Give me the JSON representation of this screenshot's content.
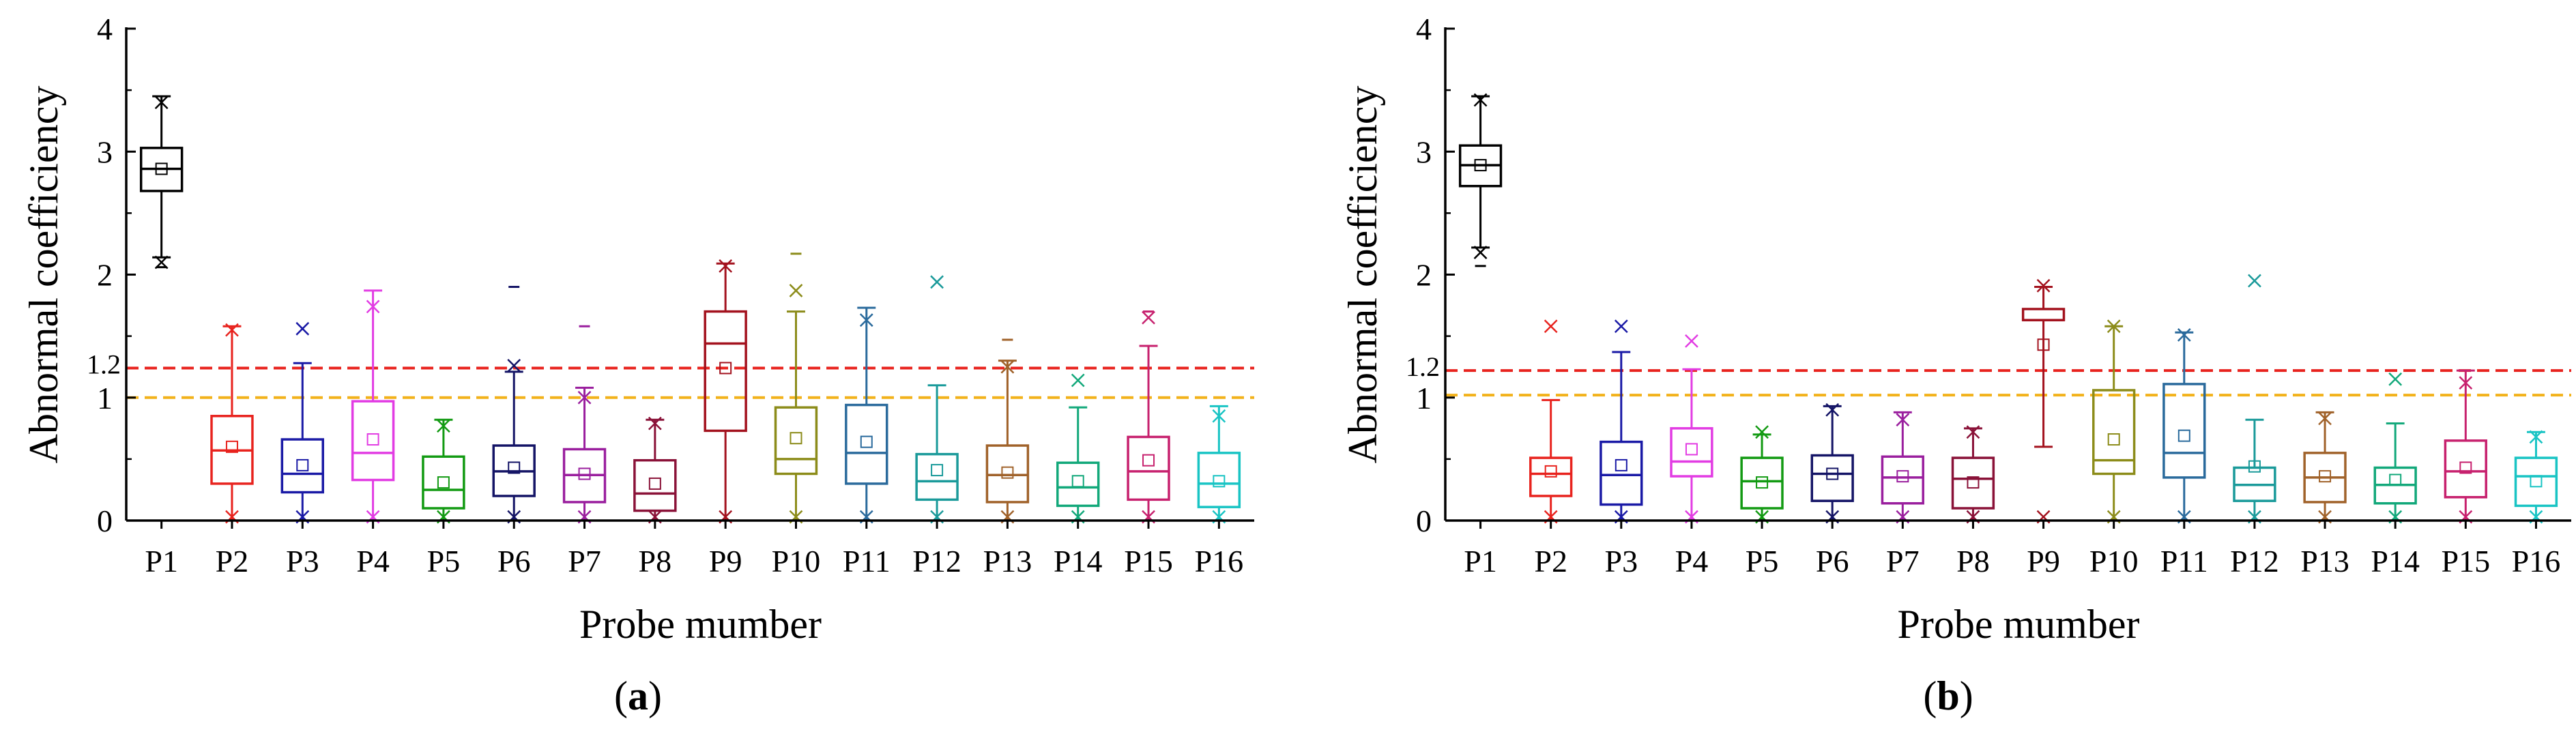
{
  "chart_data": [
    {
      "type": "box",
      "panel_label_open": "(",
      "panel_label": "a",
      "panel_label_close": ")",
      "xlabel": "Probe mumber",
      "ylabel": "Abnormal coefficiency",
      "ylim": [
        0,
        4
      ],
      "yticks": [
        "0",
        "1",
        "2",
        "3",
        "4"
      ],
      "reference_lines": [
        {
          "value": 1.24,
          "label": "1.2",
          "color": "#e8231e",
          "style": "dashed"
        },
        {
          "value": 1.0,
          "label": "",
          "color": "#f2b21b",
          "style": "dashed"
        }
      ],
      "categories": [
        "P1",
        "P2",
        "P3",
        "P4",
        "P5",
        "P6",
        "P7",
        "P8",
        "P9",
        "P10",
        "P11",
        "P12",
        "P13",
        "P14",
        "P15",
        "P16"
      ],
      "colors": [
        "#000000",
        "#e8231e",
        "#1a1aa6",
        "#e23ce3",
        "#129a12",
        "#141466",
        "#9a1f9e",
        "#8a1238",
        "#a3121e",
        "#8c8c1a",
        "#2a6a9c",
        "#1a9a9a",
        "#a0622a",
        "#12a87a",
        "#c7216e",
        "#19c4c4"
      ],
      "boxes": [
        {
          "q1": 2.68,
          "median": 2.86,
          "q3": 3.03,
          "wlow": 2.14,
          "whigh": 3.45,
          "mean": 2.86,
          "x_marks": [
            2.1,
            3.4
          ],
          "dash_marks": [
            2.06
          ]
        },
        {
          "q1": 0.3,
          "median": 0.57,
          "q3": 0.85,
          "wlow": 0.0,
          "whigh": 1.58,
          "mean": 0.6,
          "x_marks": [
            1.55,
            0.03
          ],
          "dash_marks": []
        },
        {
          "q1": 0.23,
          "median": 0.38,
          "q3": 0.66,
          "wlow": 0.0,
          "whigh": 1.28,
          "mean": 0.45,
          "x_marks": [
            1.56,
            0.03
          ],
          "dash_marks": []
        },
        {
          "q1": 0.33,
          "median": 0.55,
          "q3": 0.97,
          "wlow": 0.0,
          "whigh": 1.87,
          "mean": 0.66,
          "x_marks": [
            1.74,
            0.03
          ],
          "dash_marks": []
        },
        {
          "q1": 0.1,
          "median": 0.25,
          "q3": 0.52,
          "wlow": 0.0,
          "whigh": 0.82,
          "mean": 0.31,
          "x_marks": [
            0.77,
            0.03
          ],
          "dash_marks": []
        },
        {
          "q1": 0.2,
          "median": 0.4,
          "q3": 0.61,
          "wlow": 0.0,
          "whigh": 1.21,
          "mean": 0.43,
          "x_marks": [
            1.26,
            0.03
          ],
          "dash_marks": [
            1.9
          ]
        },
        {
          "q1": 0.15,
          "median": 0.37,
          "q3": 0.58,
          "wlow": 0.0,
          "whigh": 1.08,
          "mean": 0.38,
          "x_marks": [
            1.0,
            0.03
          ],
          "dash_marks": [
            1.58
          ]
        },
        {
          "q1": 0.08,
          "median": 0.22,
          "q3": 0.49,
          "wlow": 0.0,
          "whigh": 0.82,
          "mean": 0.3,
          "x_marks": [
            0.79,
            0.03
          ],
          "dash_marks": []
        },
        {
          "q1": 0.73,
          "median": 1.44,
          "q3": 1.7,
          "wlow": 0.0,
          "whigh": 2.09,
          "mean": 1.24,
          "x_marks": [
            2.07,
            0.03
          ],
          "dash_marks": []
        },
        {
          "q1": 0.38,
          "median": 0.5,
          "q3": 0.92,
          "wlow": 0.0,
          "whigh": 1.7,
          "mean": 0.67,
          "x_marks": [
            1.87,
            0.03
          ],
          "dash_marks": [
            2.17
          ]
        },
        {
          "q1": 0.3,
          "median": 0.55,
          "q3": 0.94,
          "wlow": 0.0,
          "whigh": 1.73,
          "mean": 0.64,
          "x_marks": [
            1.63,
            0.03
          ],
          "dash_marks": []
        },
        {
          "q1": 0.17,
          "median": 0.32,
          "q3": 0.54,
          "wlow": 0.0,
          "whigh": 1.1,
          "mean": 0.41,
          "x_marks": [
            1.94,
            0.03
          ],
          "dash_marks": []
        },
        {
          "q1": 0.15,
          "median": 0.37,
          "q3": 0.61,
          "wlow": 0.0,
          "whigh": 1.3,
          "mean": 0.39,
          "x_marks": [
            1.25,
            0.03
          ],
          "dash_marks": [
            1.47
          ]
        },
        {
          "q1": 0.12,
          "median": 0.27,
          "q3": 0.47,
          "wlow": 0.0,
          "whigh": 0.92,
          "mean": 0.32,
          "x_marks": [
            1.14,
            0.03
          ],
          "dash_marks": []
        },
        {
          "q1": 0.17,
          "median": 0.4,
          "q3": 0.68,
          "wlow": 0.0,
          "whigh": 1.42,
          "mean": 0.49,
          "x_marks": [
            1.65,
            0.03
          ],
          "dash_marks": [
            1.7
          ]
        },
        {
          "q1": 0.11,
          "median": 0.3,
          "q3": 0.55,
          "wlow": 0.0,
          "whigh": 0.93,
          "mean": 0.32,
          "x_marks": [
            0.85,
            0.03
          ],
          "dash_marks": []
        }
      ]
    },
    {
      "type": "box",
      "panel_label_open": "(",
      "panel_label": "b",
      "panel_label_close": ")",
      "xlabel": "Probe mumber",
      "ylabel": "Abnormal coefficiency",
      "ylim": [
        0,
        4
      ],
      "yticks": [
        "0",
        "1",
        "2",
        "3",
        "4"
      ],
      "reference_lines": [
        {
          "value": 1.22,
          "label": "1.2",
          "color": "#e8231e",
          "style": "dashed"
        },
        {
          "value": 1.02,
          "label": "",
          "color": "#f2b21b",
          "style": "dashed"
        }
      ],
      "categories": [
        "P1",
        "P2",
        "P3",
        "P4",
        "P5",
        "P6",
        "P7",
        "P8",
        "P9",
        "P10",
        "P11",
        "P12",
        "P13",
        "P14",
        "P15",
        "P16"
      ],
      "colors": [
        "#000000",
        "#e8231e",
        "#1a1aa6",
        "#e23ce3",
        "#129a12",
        "#141466",
        "#9a1f9e",
        "#8a1238",
        "#a3121e",
        "#8c8c1a",
        "#2a6a9c",
        "#1a9a9a",
        "#a0622a",
        "#12a87a",
        "#c7216e",
        "#19c4c4"
      ],
      "boxes": [
        {
          "q1": 2.72,
          "median": 2.89,
          "q3": 3.05,
          "wlow": 2.22,
          "whigh": 3.45,
          "mean": 2.89,
          "x_marks": [
            2.18,
            3.42
          ],
          "dash_marks": [
            2.07
          ]
        },
        {
          "q1": 0.2,
          "median": 0.38,
          "q3": 0.51,
          "wlow": 0.0,
          "whigh": 0.98,
          "mean": 0.4,
          "x_marks": [
            1.58,
            0.03
          ],
          "dash_marks": []
        },
        {
          "q1": 0.13,
          "median": 0.37,
          "q3": 0.64,
          "wlow": 0.0,
          "whigh": 1.37,
          "mean": 0.45,
          "x_marks": [
            1.58,
            0.03
          ],
          "dash_marks": []
        },
        {
          "q1": 0.36,
          "median": 0.48,
          "q3": 0.75,
          "wlow": 0.0,
          "whigh": 1.23,
          "mean": 0.58,
          "x_marks": [
            1.46,
            0.03
          ],
          "dash_marks": []
        },
        {
          "q1": 0.1,
          "median": 0.32,
          "q3": 0.51,
          "wlow": 0.0,
          "whigh": 0.7,
          "mean": 0.31,
          "x_marks": [
            0.72,
            0.03
          ],
          "dash_marks": []
        },
        {
          "q1": 0.16,
          "median": 0.38,
          "q3": 0.53,
          "wlow": 0.0,
          "whigh": 0.93,
          "mean": 0.38,
          "x_marks": [
            0.9,
            0.03
          ],
          "dash_marks": []
        },
        {
          "q1": 0.14,
          "median": 0.35,
          "q3": 0.52,
          "wlow": 0.0,
          "whigh": 0.88,
          "mean": 0.36,
          "x_marks": [
            0.82,
            0.03
          ],
          "dash_marks": []
        },
        {
          "q1": 0.1,
          "median": 0.34,
          "q3": 0.51,
          "wlow": 0.0,
          "whigh": 0.75,
          "mean": 0.31,
          "x_marks": [
            0.72,
            0.03
          ],
          "dash_marks": []
        },
        {
          "q1": 1.63,
          "median": 1.63,
          "q3": 1.72,
          "wlow": 0.6,
          "whigh": 1.9,
          "mean": 1.43,
          "x_marks": [
            1.91,
            0.03
          ],
          "dash_marks": []
        },
        {
          "q1": 0.38,
          "median": 0.49,
          "q3": 1.06,
          "wlow": 0.0,
          "whigh": 1.58,
          "mean": 0.66,
          "x_marks": [
            1.58,
            0.03
          ],
          "dash_marks": []
        },
        {
          "q1": 0.35,
          "median": 0.55,
          "q3": 1.11,
          "wlow": 0.0,
          "whigh": 1.53,
          "mean": 0.69,
          "x_marks": [
            1.51,
            0.03
          ],
          "dash_marks": []
        },
        {
          "q1": 0.16,
          "median": 0.29,
          "q3": 0.43,
          "wlow": 0.0,
          "whigh": 0.82,
          "mean": 0.44,
          "x_marks": [
            1.95,
            0.03
          ],
          "dash_marks": []
        },
        {
          "q1": 0.15,
          "median": 0.35,
          "q3": 0.55,
          "wlow": 0.0,
          "whigh": 0.88,
          "mean": 0.36,
          "x_marks": [
            0.83,
            0.03
          ],
          "dash_marks": []
        },
        {
          "q1": 0.14,
          "median": 0.29,
          "q3": 0.43,
          "wlow": 0.0,
          "whigh": 0.79,
          "mean": 0.33,
          "x_marks": [
            1.15,
            0.03
          ],
          "dash_marks": []
        },
        {
          "q1": 0.19,
          "median": 0.4,
          "q3": 0.65,
          "wlow": 0.0,
          "whigh": 1.22,
          "mean": 0.43,
          "x_marks": [
            1.12,
            0.03
          ],
          "dash_marks": []
        },
        {
          "q1": 0.12,
          "median": 0.36,
          "q3": 0.51,
          "wlow": 0.0,
          "whigh": 0.72,
          "mean": 0.32,
          "x_marks": [
            0.68,
            0.03
          ],
          "dash_marks": []
        }
      ]
    }
  ]
}
